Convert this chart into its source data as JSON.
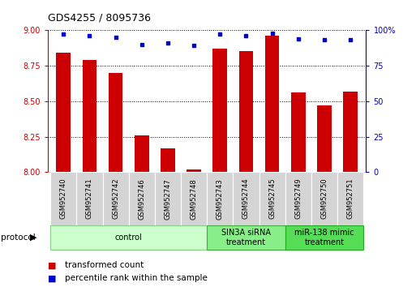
{
  "title": "GDS4255 / 8095736",
  "samples": [
    "GSM952740",
    "GSM952741",
    "GSM952742",
    "GSM952746",
    "GSM952747",
    "GSM952748",
    "GSM952743",
    "GSM952744",
    "GSM952745",
    "GSM952749",
    "GSM952750",
    "GSM952751"
  ],
  "transformed_count": [
    8.84,
    8.79,
    8.7,
    8.26,
    8.17,
    8.02,
    8.87,
    8.85,
    8.96,
    8.56,
    8.47,
    8.57
  ],
  "percentile_rank": [
    97,
    96,
    95,
    90,
    91,
    89,
    97,
    96,
    98,
    94,
    93,
    93
  ],
  "ylim_left": [
    8.0,
    9.0
  ],
  "ylim_right": [
    0,
    100
  ],
  "yticks_left": [
    8.0,
    8.25,
    8.5,
    8.75,
    9.0
  ],
  "yticks_right": [
    0,
    25,
    50,
    75,
    100
  ],
  "bar_color": "#cc0000",
  "dot_color": "#0000cc",
  "group_ranges": [
    [
      0,
      5
    ],
    [
      6,
      8
    ],
    [
      9,
      11
    ]
  ],
  "group_labels": [
    "control",
    "SIN3A siRNA\ntreatment",
    "miR-138 mimic\ntreatment"
  ],
  "group_colors": [
    "#ccffcc",
    "#88ee88",
    "#55dd55"
  ],
  "group_edge_colors": [
    "#88cc88",
    "#44aa44",
    "#22aa22"
  ],
  "background_color": "#ffffff",
  "grid_color": "#000000",
  "tick_color_left": "#cc0000",
  "tick_color_right": "#0000cc",
  "legend_items": [
    {
      "label": "transformed count",
      "color": "#cc0000"
    },
    {
      "label": "percentile rank within the sample",
      "color": "#0000cc"
    }
  ]
}
